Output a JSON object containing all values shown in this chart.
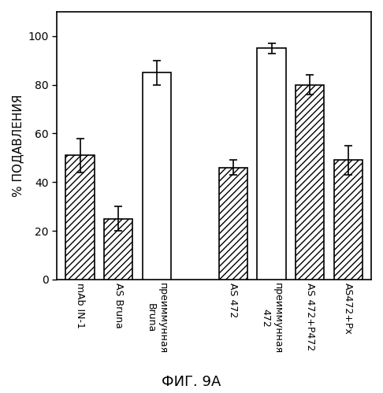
{
  "categories": [
    "mAb IN-1",
    "AS Bruna",
    "преиммунная\nBruna",
    "AS 472",
    "преиммунная\n472",
    "AS 472+P472",
    "AS472+Px"
  ],
  "values": [
    51,
    25,
    85,
    46,
    95,
    80,
    49
  ],
  "errors": [
    7,
    5,
    5,
    3,
    2,
    4,
    6
  ],
  "hatches": [
    "////",
    "////",
    "",
    "////",
    "",
    "////",
    "////"
  ],
  "bar_colors": [
    "white",
    "white",
    "white",
    "white",
    "white",
    "white",
    "white"
  ],
  "bar_edgecolors": [
    "black",
    "black",
    "black",
    "black",
    "black",
    "black",
    "black"
  ],
  "ylabel": "% ПОДАВЛЕНИЯ",
  "fig_xlabel": "ФИГ. 9A",
  "ylim": [
    0,
    110
  ],
  "yticks": [
    0,
    20,
    40,
    60,
    80,
    100
  ],
  "x_positions": [
    0,
    1,
    2,
    4,
    5,
    6,
    7
  ],
  "bar_width": 0.75,
  "figsize": [
    4.86,
    4.99
  ],
  "dpi": 100
}
